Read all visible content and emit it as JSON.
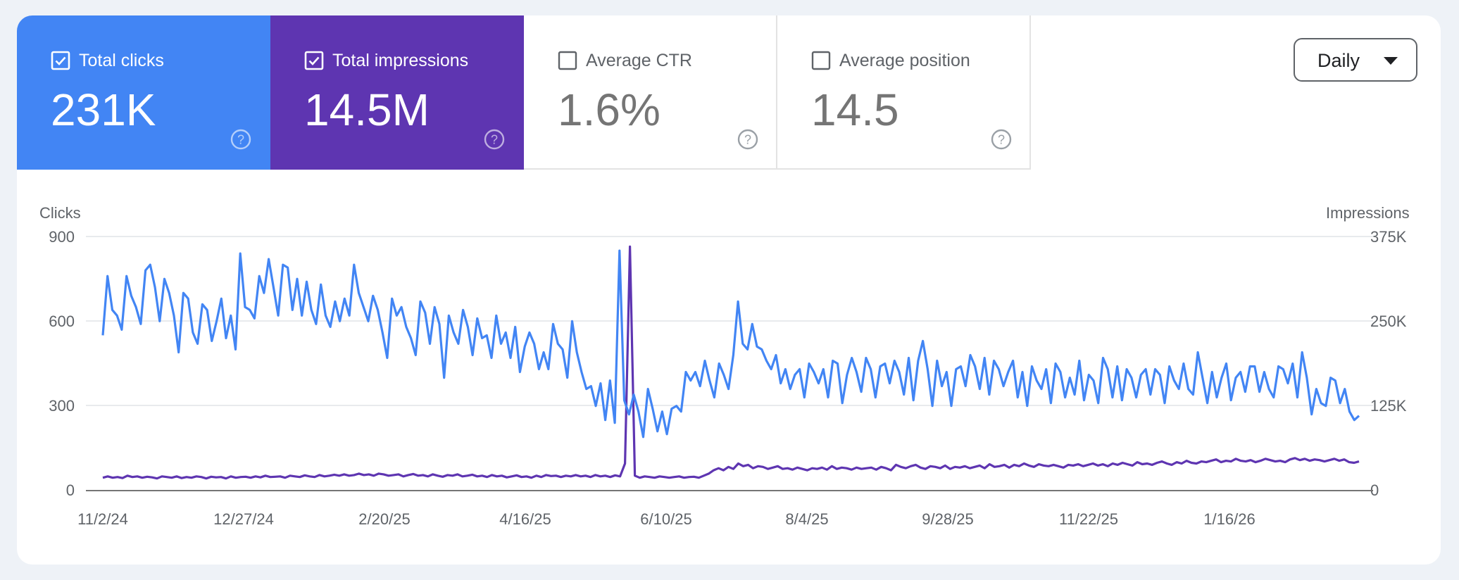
{
  "metrics": [
    {
      "label": "Total clicks",
      "value": "231K",
      "checked": true,
      "color": "#4285f4"
    },
    {
      "label": "Total impressions",
      "value": "14.5M",
      "checked": true,
      "color": "#5e35b1"
    },
    {
      "label": "Average CTR",
      "value": "1.6%",
      "checked": false,
      "color": "#ffffff"
    },
    {
      "label": "Average position",
      "value": "14.5",
      "checked": false,
      "color": "#ffffff"
    }
  ],
  "granularity": {
    "selected": "Daily"
  },
  "chart_data": {
    "type": "line",
    "x_tick_labels": [
      "11/2/24",
      "12/27/24",
      "2/20/25",
      "4/16/25",
      "6/10/25",
      "8/4/25",
      "9/28/25",
      "11/22/25",
      "1/16/26"
    ],
    "y_left": {
      "label": "Clicks",
      "ticks": [
        "900",
        "600",
        "300",
        "0"
      ],
      "range": [
        0,
        900
      ]
    },
    "y_right": {
      "label": "Impressions",
      "ticks": [
        "375K",
        "250K",
        "125K",
        "0"
      ],
      "range": [
        0,
        375000
      ]
    },
    "grid": true,
    "series": [
      {
        "name": "Clicks",
        "axis": "left",
        "color": "#4285f4",
        "values": [
          550,
          760,
          640,
          620,
          570,
          760,
          690,
          650,
          590,
          780,
          800,
          720,
          600,
          750,
          700,
          620,
          490,
          700,
          680,
          560,
          520,
          660,
          640,
          530,
          600,
          680,
          540,
          620,
          500,
          840,
          650,
          640,
          610,
          760,
          700,
          820,
          720,
          620,
          800,
          790,
          640,
          750,
          620,
          740,
          640,
          590,
          730,
          620,
          580,
          670,
          600,
          680,
          620,
          800,
          700,
          650,
          600,
          690,
          640,
          560,
          470,
          680,
          620,
          650,
          580,
          540,
          480,
          670,
          630,
          520,
          650,
          590,
          400,
          620,
          560,
          520,
          640,
          580,
          480,
          610,
          540,
          550,
          470,
          620,
          520,
          560,
          470,
          580,
          420,
          510,
          560,
          520,
          430,
          490,
          430,
          590,
          520,
          500,
          400,
          600,
          490,
          420,
          360,
          370,
          300,
          380,
          250,
          390,
          240,
          850,
          320,
          270,
          340,
          280,
          190,
          360,
          290,
          210,
          280,
          200,
          290,
          300,
          280,
          420,
          390,
          420,
          370,
          460,
          390,
          330,
          450,
          410,
          360,
          480,
          670,
          520,
          500,
          590,
          510,
          500,
          460,
          430,
          480,
          380,
          430,
          360,
          410,
          430,
          330,
          450,
          420,
          380,
          430,
          330,
          460,
          450,
          310,
          410,
          470,
          420,
          350,
          470,
          430,
          330,
          440,
          450,
          380,
          460,
          420,
          340,
          470,
          320,
          460,
          530,
          430,
          300,
          460,
          370,
          420,
          300,
          430,
          440,
          370,
          480,
          440,
          360,
          470,
          340,
          460,
          430,
          370,
          420,
          460,
          330,
          420,
          300,
          440,
          390,
          360,
          430,
          310,
          450,
          420,
          330,
          400,
          340,
          460,
          320,
          410,
          390,
          310,
          470,
          430,
          330,
          440,
          320,
          430,
          400,
          330,
          410,
          430,
          340,
          430,
          410,
          310,
          440,
          390,
          360,
          450,
          360,
          340,
          490,
          400,
          310,
          420,
          330,
          400,
          450,
          320,
          400,
          420,
          350,
          440,
          440,
          350,
          420,
          360,
          330,
          440,
          430,
          380,
          450,
          330,
          490,
          400,
          270,
          360,
          310,
          300,
          400,
          390,
          310,
          360,
          280,
          250,
          265
        ]
      },
      {
        "name": "Impressions",
        "axis": "right",
        "color": "#5e35b1",
        "values": [
          19000,
          21000,
          19000,
          20000,
          18500,
          22000,
          20000,
          21000,
          19000,
          20500,
          19500,
          18000,
          21000,
          20000,
          19000,
          21000,
          18500,
          20000,
          19000,
          21000,
          20000,
          18000,
          20500,
          19500,
          20000,
          18000,
          21000,
          19000,
          20000,
          20500,
          19000,
          21000,
          19500,
          22000,
          20000,
          20500,
          21000,
          19000,
          22000,
          21000,
          20000,
          22500,
          21000,
          20000,
          23000,
          21000,
          22000,
          23500,
          22000,
          24000,
          22000,
          23000,
          25000,
          23000,
          24000,
          22000,
          25000,
          24000,
          22000,
          23000,
          24000,
          21000,
          23000,
          24500,
          22000,
          23000,
          21000,
          24000,
          22000,
          20500,
          23000,
          22000,
          24000,
          21000,
          22000,
          23500,
          21000,
          22000,
          20000,
          23000,
          21000,
          22000,
          19500,
          21000,
          22500,
          20000,
          21000,
          19000,
          22000,
          20000,
          23000,
          21500,
          22000,
          20000,
          22000,
          21000,
          23000,
          21000,
          22000,
          20000,
          23000,
          21000,
          22000,
          20000,
          22500,
          21000,
          40000,
          360000,
          22000,
          19000,
          21000,
          20000,
          19000,
          21000,
          20000,
          19000,
          20000,
          21000,
          19000,
          20000,
          20500,
          19000,
          22000,
          25000,
          30000,
          33000,
          30000,
          35000,
          32000,
          40000,
          36000,
          38000,
          33000,
          36000,
          35000,
          32000,
          34000,
          36000,
          32000,
          33000,
          31000,
          34000,
          32000,
          30000,
          33000,
          32000,
          34000,
          31000,
          36000,
          32000,
          34000,
          33000,
          31000,
          34000,
          32000,
          33000,
          34000,
          31000,
          35000,
          33000,
          30000,
          38000,
          35000,
          33000,
          36000,
          38000,
          34000,
          32000,
          36000,
          35000,
          33000,
          37000,
          32000,
          35000,
          34000,
          36000,
          33000,
          35000,
          37000,
          33000,
          39000,
          35000,
          36000,
          38000,
          34000,
          38000,
          36000,
          40000,
          37000,
          35000,
          39000,
          37000,
          36000,
          38000,
          36000,
          34000,
          38000,
          37000,
          39000,
          36000,
          38000,
          40000,
          37000,
          39000,
          36000,
          40000,
          38000,
          41000,
          39000,
          37000,
          42000,
          39000,
          40000,
          38000,
          41000,
          43000,
          40000,
          38000,
          42000,
          40000,
          44000,
          41000,
          40000,
          43000,
          42000,
          44000,
          46000,
          42000,
          44000,
          43000,
          47000,
          44000,
          43000,
          45000,
          42000,
          44000,
          47000,
          45000,
          43000,
          44000,
          42000,
          46000,
          48000,
          45000,
          47000,
          44000,
          46000,
          45000,
          43000,
          45000,
          47000,
          44000,
          46000,
          42000,
          41000,
          43000
        ]
      }
    ]
  }
}
